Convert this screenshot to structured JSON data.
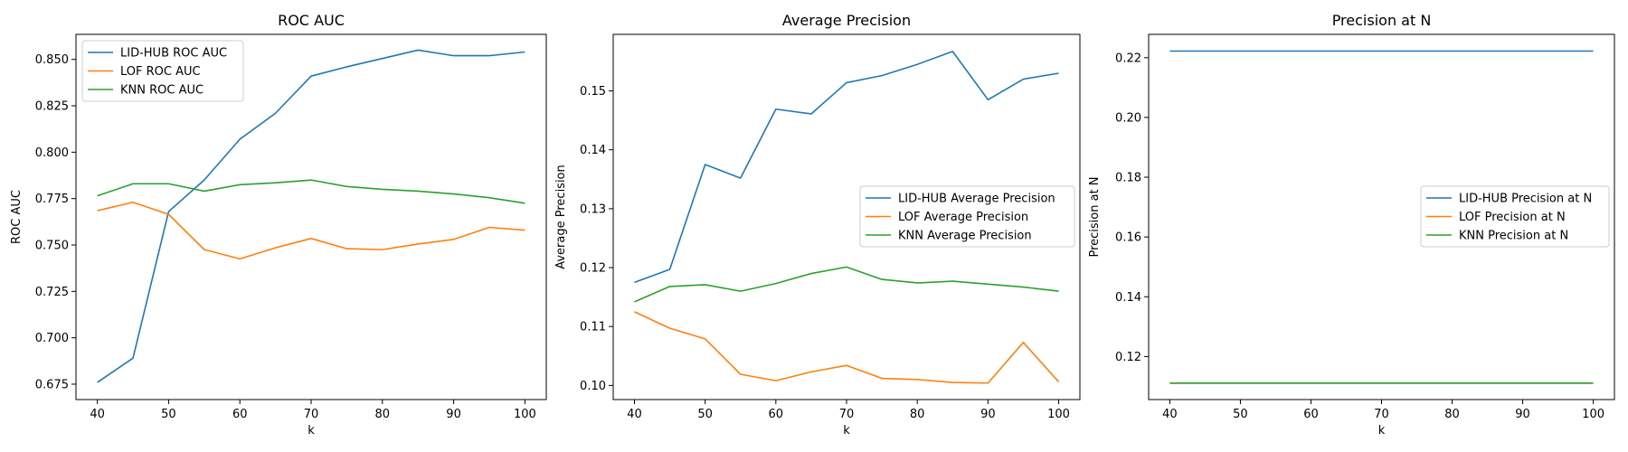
{
  "colors": {
    "blue": "#1f77b4",
    "orange": "#ff7f0e",
    "green": "#2ca02c"
  },
  "chart_data": [
    {
      "type": "line",
      "title": "ROC AUC",
      "xlabel": "k",
      "ylabel": "ROC AUC",
      "x": [
        40,
        45,
        50,
        55,
        60,
        65,
        70,
        75,
        80,
        85,
        90,
        95,
        100
      ],
      "xlim": [
        37,
        103
      ],
      "ylim": [
        0.6667,
        0.8635
      ],
      "xticks": [
        40,
        50,
        60,
        70,
        80,
        90,
        100
      ],
      "yticks": [
        "0.675",
        "0.700",
        "0.725",
        "0.750",
        "0.775",
        "0.800",
        "0.825",
        "0.850"
      ],
      "legend": "upper-left",
      "series": [
        {
          "name": "LID-HUB ROC AUC",
          "color": "blue",
          "values": [
            0.676,
            0.689,
            0.768,
            0.785,
            0.807,
            0.821,
            0.841,
            0.846,
            0.8505,
            0.855,
            0.852,
            0.852,
            0.854
          ]
        },
        {
          "name": "LOF ROC AUC",
          "color": "orange",
          "values": [
            0.7685,
            0.773,
            0.7665,
            0.7475,
            0.7425,
            0.7485,
            0.7535,
            0.748,
            0.7475,
            0.7505,
            0.753,
            0.7595,
            0.758
          ]
        },
        {
          "name": "KNN ROC AUC",
          "color": "green",
          "values": [
            0.7765,
            0.783,
            0.783,
            0.779,
            0.7825,
            0.7835,
            0.785,
            0.7815,
            0.78,
            0.779,
            0.7775,
            0.7755,
            0.7725
          ]
        }
      ]
    },
    {
      "type": "line",
      "title": "Average Precision",
      "xlabel": "k",
      "ylabel": "Average Precision",
      "x": [
        40,
        45,
        50,
        55,
        60,
        65,
        70,
        75,
        80,
        85,
        90,
        95,
        100
      ],
      "xlim": [
        37,
        103
      ],
      "ylim": [
        0.0976,
        0.1596
      ],
      "xticks": [
        40,
        50,
        60,
        70,
        80,
        90,
        100
      ],
      "yticks": [
        "0.10",
        "0.11",
        "0.12",
        "0.13",
        "0.14",
        "0.15"
      ],
      "legend": "center-right",
      "series": [
        {
          "name": "LID-HUB Average Precision",
          "color": "blue",
          "values": [
            0.1175,
            0.1197,
            0.1375,
            0.1352,
            0.1469,
            0.1461,
            0.1514,
            0.1526,
            0.1545,
            0.1567,
            0.1485,
            0.152,
            0.153
          ]
        },
        {
          "name": "LOF Average Precision",
          "color": "orange",
          "values": [
            0.1125,
            0.1097,
            0.1079,
            0.1019,
            0.1008,
            0.1023,
            0.1034,
            0.1012,
            0.101,
            0.1005,
            0.1004,
            0.1073,
            0.1006
          ]
        },
        {
          "name": "KNN Average Precision",
          "color": "green",
          "values": [
            0.1142,
            0.1168,
            0.1171,
            0.116,
            0.1173,
            0.119,
            0.1201,
            0.118,
            0.1174,
            0.1177,
            0.1172,
            0.1167,
            0.116
          ]
        }
      ]
    },
    {
      "type": "line",
      "title": "Precision at N",
      "xlabel": "k",
      "ylabel": "Precision at N",
      "x": [
        40,
        45,
        50,
        55,
        60,
        65,
        70,
        75,
        80,
        85,
        90,
        95,
        100
      ],
      "xlim": [
        37,
        103
      ],
      "ylim": [
        0.1056,
        0.2278
      ],
      "xticks": [
        40,
        50,
        60,
        70,
        80,
        90,
        100
      ],
      "yticks": [
        "0.12",
        "0.14",
        "0.16",
        "0.18",
        "0.20",
        "0.22"
      ],
      "legend": "center-right",
      "series": [
        {
          "name": "LID-HUB Precision at N",
          "color": "blue",
          "values": [
            0.2222,
            0.2222,
            0.2222,
            0.2222,
            0.2222,
            0.2222,
            0.2222,
            0.2222,
            0.2222,
            0.2222,
            0.2222,
            0.2222,
            0.2222
          ]
        },
        {
          "name": "LOF Precision at N",
          "color": "orange",
          "values": [
            0.1111,
            0.1111,
            0.1111,
            0.1111,
            0.1111,
            0.1111,
            0.1111,
            0.1111,
            0.1111,
            0.1111,
            0.1111,
            0.1111,
            0.1111
          ]
        },
        {
          "name": "KNN Precision at N",
          "color": "green",
          "values": [
            0.1111,
            0.1111,
            0.1111,
            0.1111,
            0.1111,
            0.1111,
            0.1111,
            0.1111,
            0.1111,
            0.1111,
            0.1111,
            0.1111,
            0.1111
          ]
        }
      ]
    }
  ]
}
